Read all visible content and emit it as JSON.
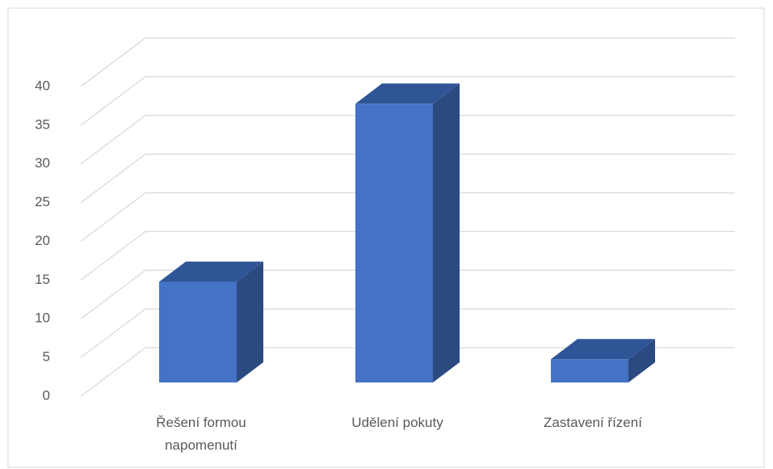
{
  "chart_data": {
    "type": "bar3d",
    "categories": [
      "Řešení formou napomenutí",
      "Udělení pokuty",
      "Zastavení řízení"
    ],
    "values": [
      13,
      36,
      3
    ],
    "color": "#4472c4",
    "ylim": [
      0,
      40
    ],
    "yticks": [
      0,
      5,
      10,
      15,
      20,
      25,
      30,
      35,
      40
    ],
    "grid": true
  }
}
